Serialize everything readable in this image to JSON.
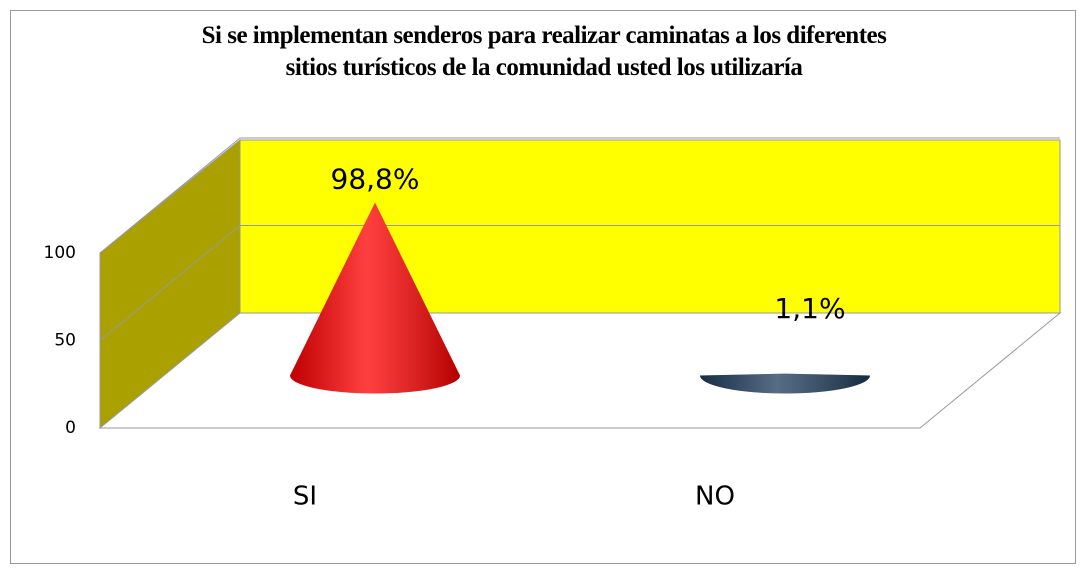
{
  "chart_data": {
    "type": "cone",
    "title": "Si se implementan senderos para realizar caminatas a los diferentes\nsitios turísticos de la comunidad usted los utilizaría",
    "categories": [
      "SI",
      "NO"
    ],
    "values": [
      98.8,
      1.1
    ],
    "value_labels": [
      "98,8%",
      "1,1%"
    ],
    "colors": [
      "#ff0000",
      "#1f3b5c"
    ],
    "ylim": [
      0,
      100
    ],
    "yticks": [
      0,
      50,
      100
    ],
    "grid": true
  }
}
